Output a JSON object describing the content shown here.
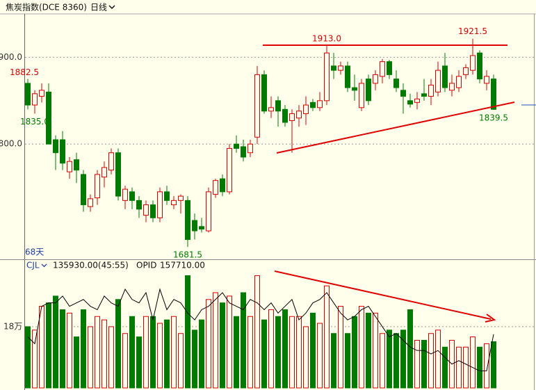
{
  "chart_data": [
    {
      "type": "candlestick",
      "title": "焦炭指数(DCE 8360)",
      "period": "日线",
      "footer": "68天",
      "up_color": "#d40000",
      "down_color": "#007a00",
      "open": [
        1870,
        1845,
        1855,
        1860,
        1805,
        1805,
        1768,
        1782,
        1765,
        1728,
        1738,
        1762,
        1770,
        1790,
        1735,
        1745,
        1735,
        1718,
        1730,
        1715,
        1745,
        1730,
        1735,
        1735,
        1712,
        1705,
        1700,
        1742,
        1760,
        1745,
        1800,
        1797,
        1790,
        1808,
        1880,
        1838,
        1850,
        1840,
        1827,
        1830,
        1835,
        1848,
        1842,
        1850,
        1890,
        1885,
        1890,
        1865,
        1842,
        1875,
        1870,
        1878,
        1895,
        1875,
        1862,
        1850,
        1848,
        1858,
        1855,
        1860,
        1890,
        1862,
        1865,
        1880,
        1885,
        1905,
        1870,
        1875
      ],
      "high": [
        1875,
        1862,
        1870,
        1870,
        1810,
        1815,
        1785,
        1790,
        1770,
        1742,
        1770,
        1780,
        1795,
        1795,
        1752,
        1750,
        1740,
        1735,
        1735,
        1750,
        1752,
        1740,
        1742,
        1740,
        1720,
        1715,
        1750,
        1760,
        1765,
        1800,
        1810,
        1805,
        1805,
        1890,
        1885,
        1855,
        1855,
        1845,
        1840,
        1845,
        1855,
        1852,
        1860,
        1913,
        1905,
        1895,
        1895,
        1880,
        1875,
        1880,
        1885,
        1898,
        1897,
        1885,
        1870,
        1858,
        1860,
        1875,
        1875,
        1895,
        1905,
        1880,
        1885,
        1892,
        1921.5,
        1908,
        1885,
        1880
      ],
      "low": [
        1840,
        1835,
        1848,
        1800,
        1770,
        1770,
        1760,
        1755,
        1722,
        1722,
        1730,
        1750,
        1765,
        1735,
        1725,
        1725,
        1715,
        1710,
        1710,
        1710,
        1730,
        1725,
        1720,
        1681.5,
        1690,
        1698,
        1698,
        1738,
        1740,
        1742,
        1790,
        1780,
        1785,
        1800,
        1835,
        1830,
        1820,
        1820,
        1790,
        1820,
        1822,
        1838,
        1838,
        1845,
        1875,
        1880,
        1860,
        1850,
        1838,
        1845,
        1862,
        1870,
        1875,
        1860,
        1835,
        1842,
        1840,
        1850,
        1845,
        1855,
        1860,
        1855,
        1860,
        1875,
        1880,
        1870,
        1862,
        1839.5
      ],
      "close": [
        1845,
        1858,
        1862,
        1800,
        1790,
        1778,
        1780,
        1770,
        1730,
        1737,
        1765,
        1773,
        1790,
        1740,
        1748,
        1735,
        1725,
        1730,
        1715,
        1745,
        1735,
        1735,
        1740,
        1690,
        1700,
        1702,
        1745,
        1758,
        1745,
        1795,
        1795,
        1785,
        1800,
        1880,
        1838,
        1842,
        1838,
        1825,
        1835,
        1838,
        1845,
        1842,
        1850,
        1905,
        1885,
        1890,
        1865,
        1862,
        1870,
        1850,
        1880,
        1895,
        1880,
        1865,
        1855,
        1846,
        1852,
        1855,
        1868,
        1885,
        1865,
        1870,
        1878,
        1888,
        1902,
        1875,
        1878,
        1840
      ],
      "ylim": [
        1668,
        1950
      ],
      "yticks": [
        {
          "value": 1900,
          "label": "1900.0"
        },
        {
          "value": 1800,
          "label": "1800.0"
        }
      ],
      "annotations": [
        {
          "value": 1882.5,
          "label": "1882.5"
        },
        {
          "value": 1913.0,
          "label": "1913.0"
        },
        {
          "value": 1921.5,
          "label": "1921.5"
        },
        {
          "value": 1835.0,
          "label": "1835.0"
        },
        {
          "value": 1839.5,
          "label": "1839.5"
        },
        {
          "value": 1681.5,
          "label": "1681.5"
        }
      ]
    },
    {
      "type": "bar",
      "title": "CJL",
      "summary": "135930.00(45:55)",
      "series": [
        {
          "name": "CJL",
          "values": [
            180000,
            170000,
            240000,
            250000,
            270000,
            230000,
            220000,
            150000,
            230000,
            180000,
            210000,
            200000,
            180000,
            260000,
            160000,
            210000,
            150000,
            210000,
            210000,
            190000,
            200000,
            210000,
            160000,
            330000,
            170000,
            200000,
            260000,
            280000,
            250000,
            270000,
            210000,
            280000,
            210000,
            330000,
            200000,
            230000,
            210000,
            230000,
            210000,
            210000,
            180000,
            220000,
            190000,
            300000,
            160000,
            240000,
            160000,
            210000,
            240000,
            220000,
            220000,
            160000,
            170000,
            160000,
            170000,
            230000,
            140000,
            140000,
            160000,
            170000,
            120000,
            140000,
            120000,
            120000,
            150000,
            120000,
            130000,
            135930
          ]
        },
        {
          "name": "OPID",
          "value_label": "157710.00",
          "color": "#000000",
          "values": [
            150000,
            130000,
            240000,
            250000,
            250000,
            270000,
            240000,
            250000,
            260000,
            240000,
            230000,
            270000,
            250000,
            240000,
            290000,
            260000,
            250000,
            280000,
            200000,
            290000,
            230000,
            260000,
            250000,
            220000,
            200000,
            230000,
            240000,
            260000,
            280000,
            250000,
            240000,
            230000,
            260000,
            250000,
            230000,
            250000,
            220000,
            240000,
            260000,
            200000,
            220000,
            250000,
            260000,
            280000,
            250000,
            220000,
            200000,
            210000,
            230000,
            240000,
            210000,
            180000,
            150000,
            160000,
            140000,
            120000,
            110000,
            110000,
            100000,
            110000,
            90000,
            70000,
            80000,
            70000,
            60000,
            50000,
            50000,
            157710
          ]
        }
      ],
      "ylim": [
        0,
        374000
      ],
      "yticks": [
        {
          "value": 180000,
          "label": "18万"
        }
      ]
    }
  ]
}
